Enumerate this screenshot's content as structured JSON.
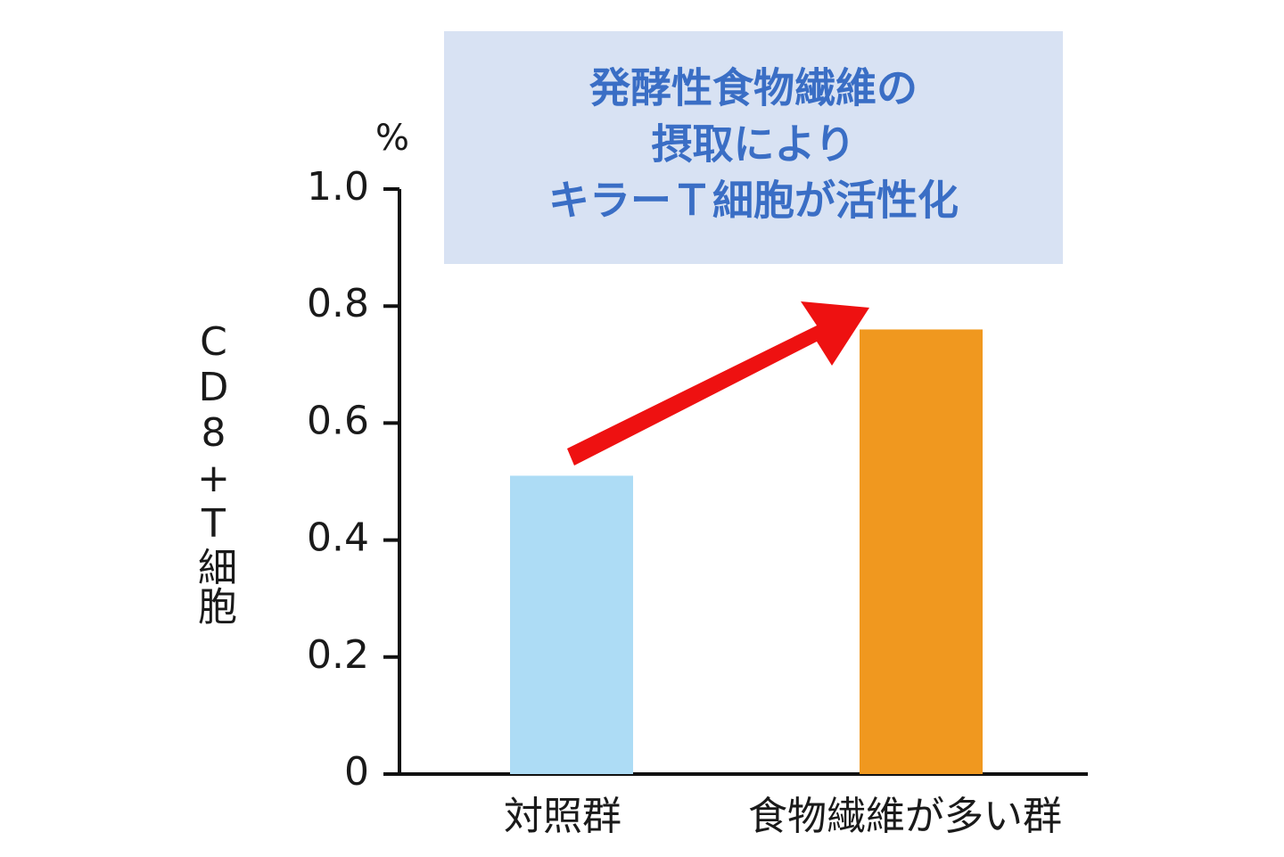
{
  "chart_data": {
    "type": "bar",
    "annotation": [
      "発酵性食物繊維の",
      "摂取により",
      "キラーＴ細胞が活性化"
    ],
    "y_label": "CD8+T細胞",
    "y_unit": "%",
    "categories": [
      "対照群",
      "食物繊維が多い群"
    ],
    "values": [
      0.51,
      0.76
    ],
    "colors": [
      "#addcf5",
      "#f0981f"
    ],
    "ylim": [
      0,
      1
    ],
    "yticks": [
      0,
      0.2,
      0.4,
      0.6,
      0.8,
      {
        "value": 1,
        "label": "1.0"
      }
    ]
  }
}
